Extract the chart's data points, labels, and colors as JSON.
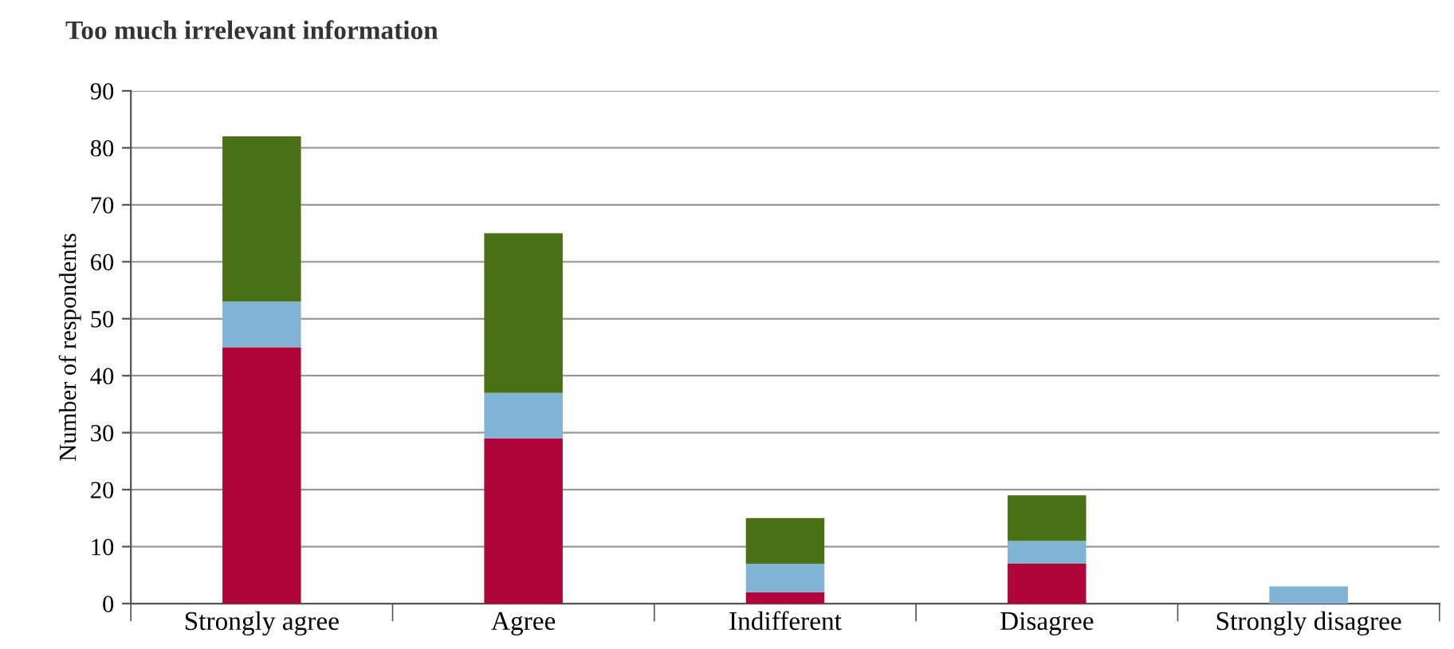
{
  "chart_data": {
    "type": "bar",
    "title": "Too much irrelevant information",
    "ylabel": "Number of respondents",
    "categories": [
      "Strongly agree",
      "Agree",
      "Indifferent",
      "Disagree",
      "Strongly disagree"
    ],
    "stacked": true,
    "series": [
      {
        "color": "#b0063a",
        "values": [
          45,
          29,
          2,
          7,
          0
        ]
      },
      {
        "color": "#80b3d4",
        "values": [
          8,
          8,
          5,
          4,
          3
        ]
      },
      {
        "color": "#4a7116",
        "values": [
          29,
          28,
          8,
          8,
          0
        ]
      }
    ],
    "ylim": [
      0,
      90
    ],
    "yticks": [
      0,
      10,
      20,
      30,
      40,
      50,
      60,
      70,
      80,
      90
    ],
    "grid": "y",
    "legend": false
  }
}
